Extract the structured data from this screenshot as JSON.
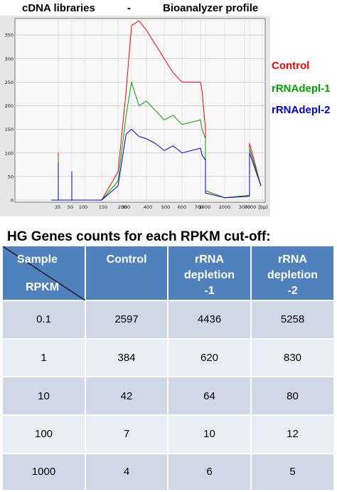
{
  "header": {
    "left": "cDNA libraries",
    "dash": "-",
    "right": "Bioanalyzer profile"
  },
  "chart_data": {
    "type": "line",
    "title": "cDNA libraries - Bioanalyzer profile",
    "y_ticks": [
      0,
      50,
      100,
      150,
      200,
      250,
      300,
      350,
      400
    ],
    "ylim": [
      0,
      410
    ],
    "x_tick_labels": [
      "35",
      "50",
      "100",
      "150",
      "200",
      "300",
      "400",
      "500",
      "600",
      "700",
      "1000",
      "2000",
      "3000",
      "7000",
      "[bp]"
    ],
    "series": [
      {
        "name": "Control",
        "color": "#ff0000",
        "values": [
          [
            30,
            0
          ],
          [
            35,
            0
          ],
          [
            35,
            100
          ],
          [
            35,
            0
          ],
          [
            50,
            0
          ],
          [
            50,
            55
          ],
          [
            50,
            0
          ],
          [
            80,
            0
          ],
          [
            150,
            0
          ],
          [
            200,
            60
          ],
          [
            260,
            230
          ],
          [
            300,
            370
          ],
          [
            350,
            380
          ],
          [
            400,
            360
          ],
          [
            450,
            330
          ],
          [
            500,
            300
          ],
          [
            550,
            270
          ],
          [
            600,
            250
          ],
          [
            700,
            250
          ],
          [
            800,
            230
          ],
          [
            1000,
            150
          ],
          [
            1000,
            20
          ],
          [
            2000,
            5
          ],
          [
            7000,
            10
          ],
          [
            7000,
            120
          ],
          [
            7500,
            30
          ]
        ]
      },
      {
        "name": "rRNAdepl-1",
        "color": "#00a000",
        "values": [
          [
            30,
            0
          ],
          [
            35,
            0
          ],
          [
            35,
            90
          ],
          [
            35,
            0
          ],
          [
            50,
            0
          ],
          [
            50,
            50
          ],
          [
            50,
            0
          ],
          [
            80,
            0
          ],
          [
            150,
            0
          ],
          [
            200,
            40
          ],
          [
            260,
            180
          ],
          [
            300,
            250
          ],
          [
            350,
            200
          ],
          [
            400,
            210
          ],
          [
            450,
            190
          ],
          [
            500,
            170
          ],
          [
            550,
            180
          ],
          [
            600,
            160
          ],
          [
            700,
            170
          ],
          [
            800,
            150
          ],
          [
            1000,
            130
          ],
          [
            1000,
            20
          ],
          [
            2000,
            5
          ],
          [
            7000,
            10
          ],
          [
            7000,
            110
          ],
          [
            7500,
            30
          ]
        ]
      },
      {
        "name": "rRNAdepl-2",
        "color": "#0000d0",
        "values": [
          [
            30,
            0
          ],
          [
            35,
            0
          ],
          [
            35,
            80
          ],
          [
            35,
            0
          ],
          [
            50,
            0
          ],
          [
            50,
            60
          ],
          [
            50,
            0
          ],
          [
            80,
            0
          ],
          [
            150,
            0
          ],
          [
            200,
            30
          ],
          [
            260,
            140
          ],
          [
            300,
            150
          ],
          [
            350,
            135
          ],
          [
            400,
            130
          ],
          [
            450,
            120
          ],
          [
            500,
            105
          ],
          [
            550,
            115
          ],
          [
            600,
            100
          ],
          [
            700,
            110
          ],
          [
            800,
            95
          ],
          [
            1000,
            85
          ],
          [
            1000,
            15
          ],
          [
            2000,
            5
          ],
          [
            7000,
            8
          ],
          [
            7000,
            100
          ],
          [
            7500,
            30
          ]
        ]
      }
    ]
  },
  "table": {
    "heading": "HG Genes counts for each RPKM cut-off:",
    "corner_top": "Sample",
    "corner_bottom": "RPKM",
    "columns": [
      {
        "lines": [
          "Control"
        ]
      },
      {
        "lines": [
          "rRNA",
          "depletion",
          "-1"
        ]
      },
      {
        "lines": [
          "rRNA",
          "depletion",
          "-2"
        ]
      }
    ],
    "rows": [
      {
        "rpkm": "0.1",
        "values": [
          "2597",
          "4436",
          "5258"
        ]
      },
      {
        "rpkm": "1",
        "values": [
          "384",
          "620",
          "830"
        ]
      },
      {
        "rpkm": "10",
        "values": [
          "42",
          "64",
          "80"
        ]
      },
      {
        "rpkm": "100",
        "values": [
          "7",
          "10",
          "12"
        ]
      },
      {
        "rpkm": "1000",
        "values": [
          "4",
          "6",
          "5"
        ]
      }
    ]
  }
}
